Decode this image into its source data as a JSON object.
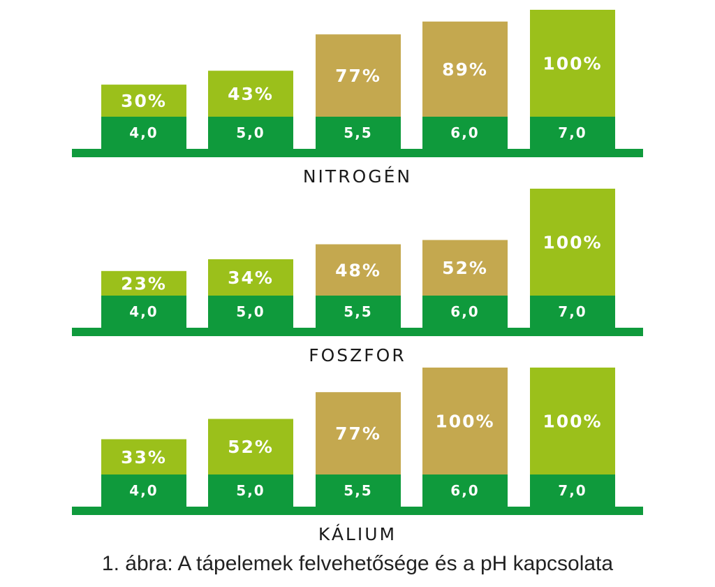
{
  "chart_data": [
    {
      "type": "bar",
      "title": "NITROGÉN",
      "categories": [
        "4,0",
        "5,0",
        "5,5",
        "6,0",
        "7,0"
      ],
      "values": [
        30,
        43,
        77,
        89,
        100
      ],
      "value_labels": [
        "30%",
        "43%",
        "77%",
        "89%",
        "100%"
      ],
      "bar_colors": [
        "#9bc01b",
        "#9bc01b",
        "#c4a84f",
        "#c4a84f",
        "#9bc01b"
      ],
      "ylim": [
        0,
        100
      ]
    },
    {
      "type": "bar",
      "title": "FOSZFOR",
      "categories": [
        "4,0",
        "5,0",
        "5,5",
        "6,0",
        "7,0"
      ],
      "values": [
        23,
        34,
        48,
        52,
        100
      ],
      "value_labels": [
        "23%",
        "34%",
        "48%",
        "52%",
        "100%"
      ],
      "bar_colors": [
        "#9bc01b",
        "#9bc01b",
        "#c4a84f",
        "#c4a84f",
        "#9bc01b"
      ],
      "ylim": [
        0,
        100
      ]
    },
    {
      "type": "bar",
      "title": "KÁLIUM",
      "categories": [
        "4,0",
        "5,0",
        "5,5",
        "6,0",
        "7,0"
      ],
      "values": [
        33,
        52,
        77,
        100,
        100
      ],
      "value_labels": [
        "33%",
        "52%",
        "77%",
        "100%",
        "100%"
      ],
      "bar_colors": [
        "#9bc01b",
        "#9bc01b",
        "#c4a84f",
        "#c4a84f",
        "#9bc01b"
      ],
      "ylim": [
        0,
        100
      ]
    }
  ],
  "colors": {
    "base_green": "#0f9a3c",
    "light_green": "#9bc01b",
    "tan": "#c4a84f",
    "label_white": "#ffffff"
  },
  "caption": "1. ábra: A tápelemek felvehetősége és a pH kapcsolata"
}
